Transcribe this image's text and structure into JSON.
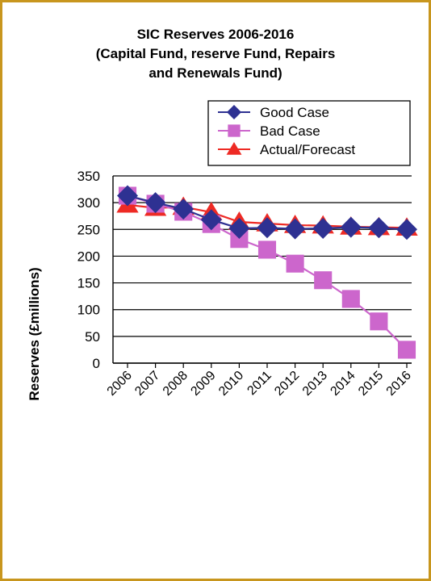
{
  "frame_color": "#C8961E",
  "chart_data": {
    "type": "line",
    "title_lines": [
      "SIC Reserves 2006-2016",
      "(Capital Fund, reserve Fund, Repairs",
      "and Renewals Fund)"
    ],
    "xlabel": "",
    "ylabel": "Reserves (£millions)",
    "categories": [
      "2006",
      "2007",
      "2008",
      "2009",
      "2010",
      "2011",
      "2012",
      "2013",
      "2014",
      "2015",
      "2016"
    ],
    "ylim": [
      0,
      350
    ],
    "yticks": [
      0,
      50,
      100,
      150,
      200,
      250,
      300,
      350
    ],
    "ytick_labels": [
      "0",
      "50",
      "100",
      "150",
      "200",
      "250",
      "300",
      "350"
    ],
    "grid": true,
    "legend_placement": "top-right",
    "series": [
      {
        "name": "Good Case",
        "marker": "diamond",
        "color": "#2E3192",
        "values": [
          313,
          300,
          288,
          268,
          252,
          253,
          251,
          252,
          254,
          253,
          250
        ]
      },
      {
        "name": "Bad Case",
        "marker": "square",
        "color": "#CC66CC",
        "values": [
          313,
          298,
          283,
          260,
          232,
          212,
          186,
          155,
          120,
          78,
          25
        ]
      },
      {
        "name": "Actual/Forecast",
        "marker": "triangle",
        "color": "#EE2A24",
        "values": [
          296,
          290,
          292,
          282,
          264,
          261,
          258,
          257,
          255,
          254,
          253
        ]
      }
    ]
  }
}
